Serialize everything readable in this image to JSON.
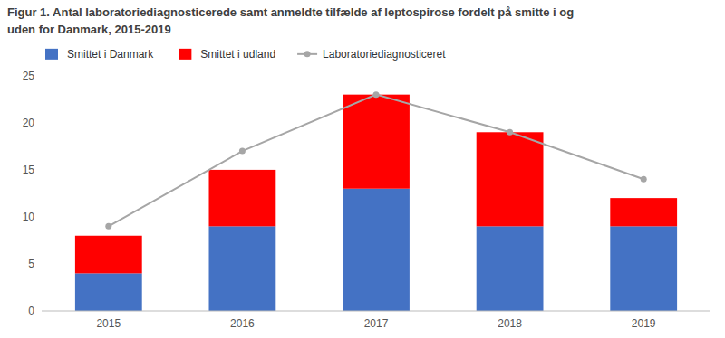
{
  "chart_data": {
    "type": "bar",
    "title": "Figur 1. Antal laboratoriediagnosticerede samt anmeldte tilfælde af leptospirose fordelt på smitte i og\nuden for Danmark, 2015-2019",
    "categories": [
      "2015",
      "2016",
      "2017",
      "2018",
      "2019"
    ],
    "stacked": true,
    "series": [
      {
        "name": "Smittet i Danmark",
        "type": "bar",
        "color": "#4472c4",
        "values": [
          4,
          9,
          13,
          9,
          9
        ]
      },
      {
        "name": "Smittet i udland",
        "type": "bar",
        "color": "#ff0000",
        "values": [
          4,
          6,
          10,
          10,
          3
        ]
      },
      {
        "name": "Laboratoriediagnosticeret",
        "type": "line",
        "color": "#a6a6a6",
        "marker": "circle",
        "values": [
          9,
          17,
          23,
          19,
          14
        ]
      }
    ],
    "ylim": [
      0,
      25
    ],
    "yticks": [
      0,
      5,
      10,
      15,
      20,
      25
    ],
    "grid": false,
    "legend": "upper left"
  }
}
